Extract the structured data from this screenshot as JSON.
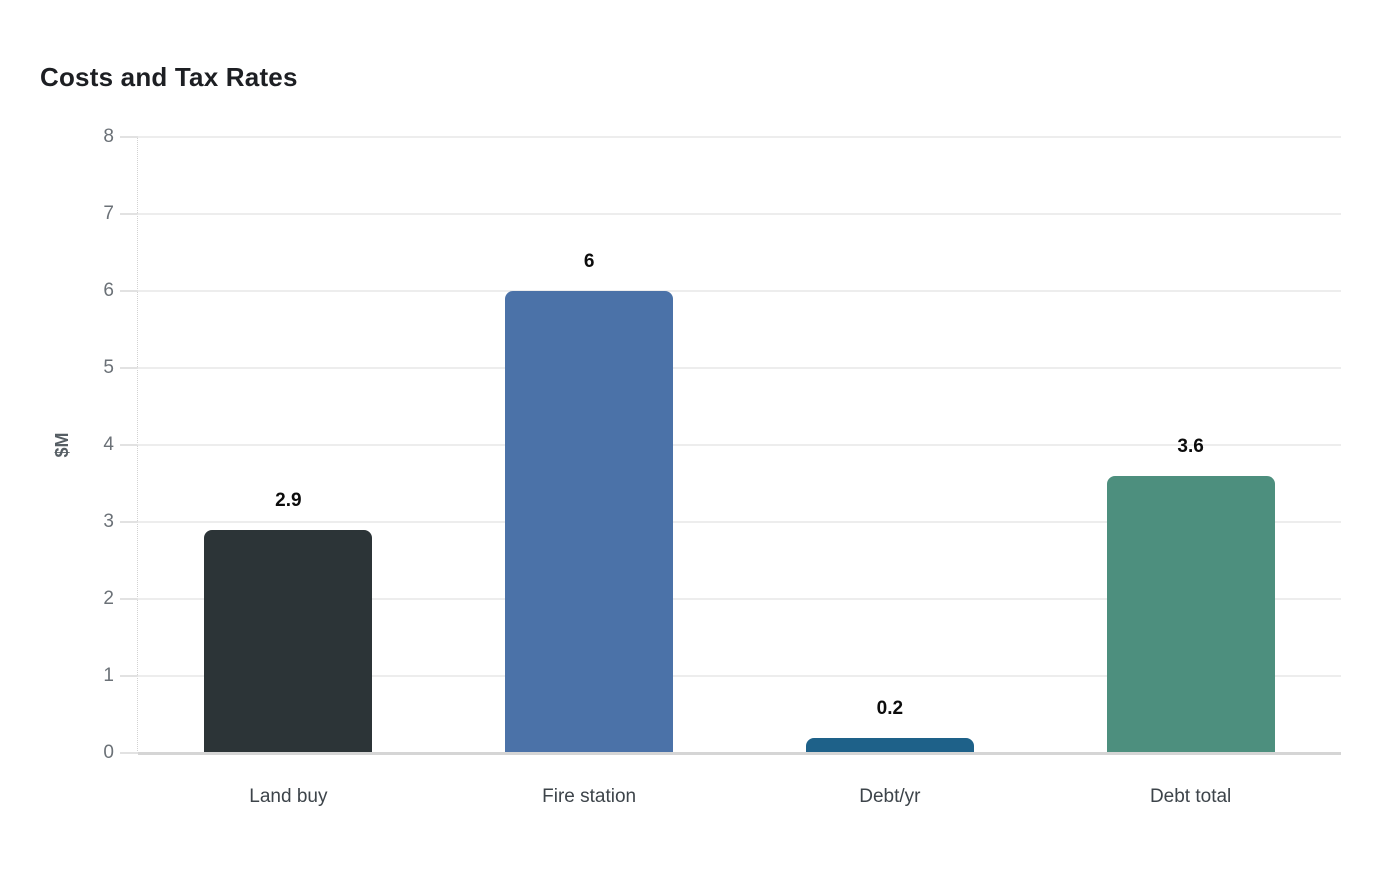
{
  "chart_data": {
    "type": "bar",
    "title": "Costs and Tax Rates",
    "xlabel": "",
    "ylabel": "$M",
    "categories": [
      "Land buy",
      "Fire station",
      "Debt/yr",
      "Debt total"
    ],
    "values": [
      2.9,
      6,
      0.2,
      3.6
    ],
    "value_labels": [
      "2.9",
      "6",
      "0.2",
      "3.6"
    ],
    "bar_colors": [
      "#2c3437",
      "#4b72a8",
      "#1e6189",
      "#4d8f7e"
    ],
    "ylim": [
      0,
      8
    ],
    "yticks": [
      0,
      1,
      2,
      3,
      4,
      5,
      6,
      7,
      8
    ],
    "grid": "horizontal",
    "legend": "none"
  },
  "colors": {
    "background": "#ffffff",
    "title_text": "#1d1f23",
    "axis_label_text": "#565e64",
    "tick_text": "#6b7177",
    "category_text": "#3d444a",
    "value_label_text": "#0c0c0c",
    "gridline": "#ededed",
    "baseline": "#d5d5d5"
  }
}
